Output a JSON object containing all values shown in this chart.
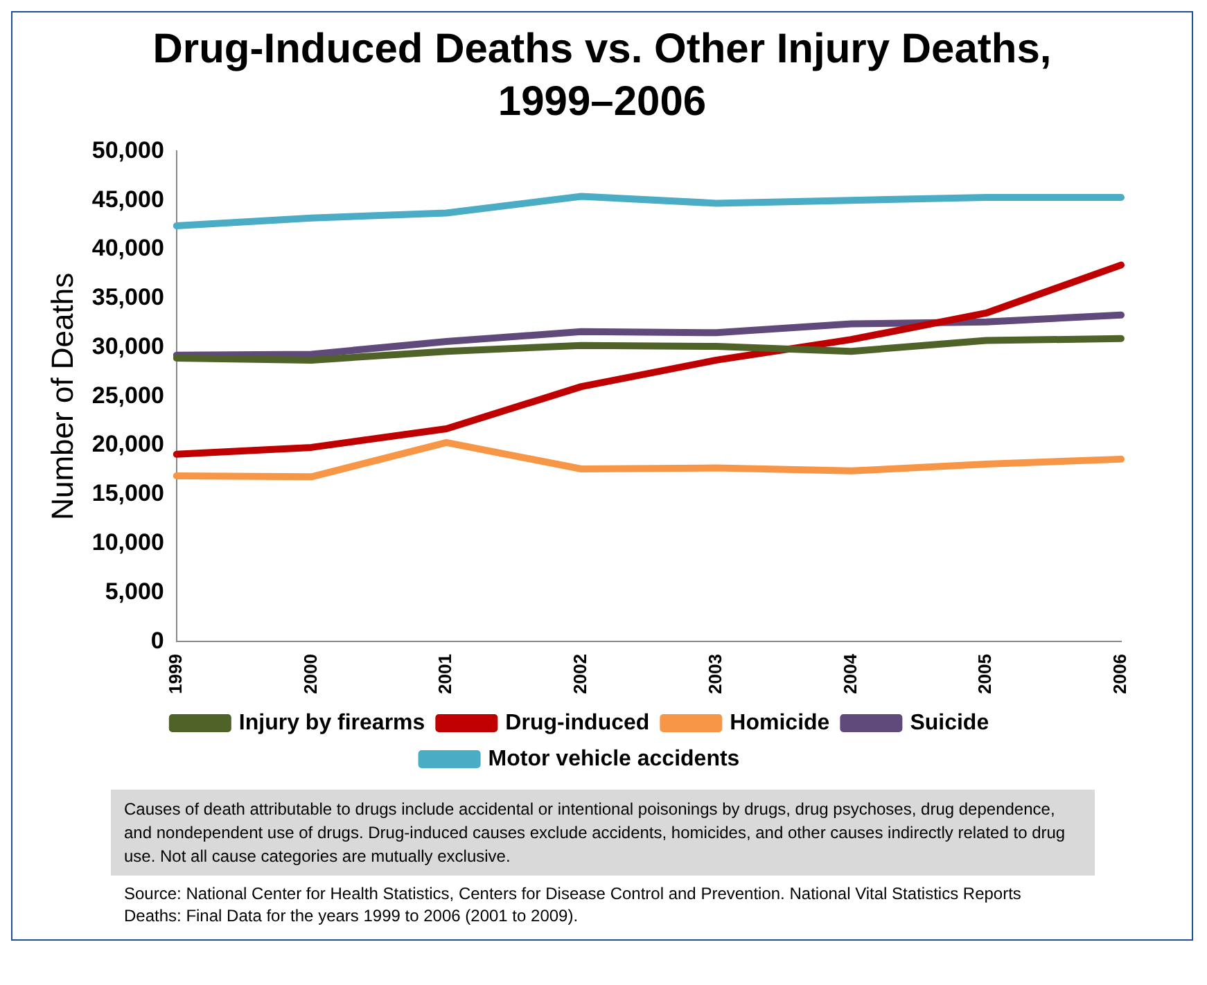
{
  "chart_data": {
    "type": "line",
    "title": "Drug-Induced Deaths vs. Other Injury Deaths, 1999–2006",
    "ylabel": "Number of Deaths",
    "categories": [
      "1999",
      "2000",
      "2001",
      "2002",
      "2003",
      "2004",
      "2005",
      "2006"
    ],
    "series": [
      {
        "name": "Injury by firearms",
        "color": "#4f6228",
        "values": [
          28900,
          28700,
          29600,
          30200,
          30100,
          29600,
          30700,
          30900
        ]
      },
      {
        "name": "Drug-induced",
        "color": "#c00000",
        "values": [
          19100,
          19800,
          21700,
          26000,
          28700,
          30800,
          33500,
          38400
        ]
      },
      {
        "name": "Homicide",
        "color": "#f79646",
        "values": [
          16900,
          16800,
          20300,
          17600,
          17700,
          17400,
          18100,
          18600
        ]
      },
      {
        "name": "Suicide",
        "color": "#604a7b",
        "values": [
          29200,
          29300,
          30600,
          31600,
          31500,
          32400,
          32600,
          33300
        ]
      },
      {
        "name": "Motor vehicle accidents",
        "color": "#4bacc6",
        "values": [
          42400,
          43200,
          43700,
          45400,
          44700,
          45000,
          45300,
          45300
        ]
      }
    ],
    "ylim": [
      0,
      50000
    ],
    "yticks": [
      0,
      {
        "value": 5000,
        "label": "5,000"
      },
      {
        "value": 10000,
        "label": "10,000"
      },
      {
        "value": 15000,
        "label": "15,000"
      },
      {
        "value": 20000,
        "label": "20,000"
      },
      {
        "value": 25000,
        "label": "25,000"
      },
      {
        "value": 30000,
        "label": "30,000"
      },
      {
        "value": 35000,
        "label": "35,000"
      },
      {
        "value": 40000,
        "label": "40,000"
      },
      {
        "value": 45000,
        "label": "45,000"
      },
      {
        "value": 50000,
        "label": "50,000"
      }
    ],
    "grid": false,
    "legend": "bottom",
    "marker": "none",
    "line_style": "solid",
    "annotations": [
      "Causes of death attributable to drugs include accidental or intentional poisonings by drugs, drug psychoses, drug dependence, and nondependent use of drugs.  Drug-induced causes exclude accidents, homicides, and other causes indirectly related to drug use.  Not all cause categories are mutually exclusive.",
      "Source: National Center for Health Statistics, Centers for Disease Control and Prevention.  National Vital Statistics Reports Deaths: Final Data for the years 1999 to 2006 (2001 to 2009)."
    ]
  }
}
